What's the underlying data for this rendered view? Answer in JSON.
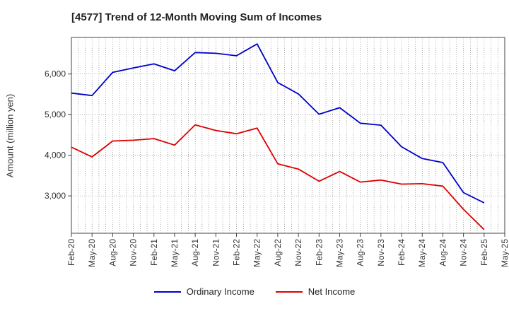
{
  "chart_data": {
    "type": "line",
    "title": "[4577]  Trend of 12-Month Moving Sum of Incomes",
    "xlabel": "",
    "ylabel": "Amount (million yen)",
    "categories": [
      "Feb-20",
      "May-20",
      "Aug-20",
      "Nov-20",
      "Feb-21",
      "May-21",
      "Aug-21",
      "Nov-21",
      "Feb-22",
      "May-22",
      "Aug-22",
      "Nov-22",
      "Feb-23",
      "May-23",
      "Aug-23",
      "Nov-23",
      "Feb-24",
      "May-24",
      "Aug-24",
      "Nov-24",
      "Feb-25",
      "May-25"
    ],
    "yticks": [
      3000,
      4000,
      5000,
      6000
    ],
    "ytick_labels": [
      "3,000",
      "4,000",
      "5,000",
      "6,000"
    ],
    "ylim": [
      2080,
      6900
    ],
    "grid": true,
    "legend_position": "bottom",
    "series": [
      {
        "name": "Ordinary Income",
        "color": "#0000cc",
        "values": [
          5530,
          5470,
          6040,
          6150,
          6250,
          6080,
          6530,
          6510,
          6450,
          6740,
          5790,
          5510,
          5010,
          5170,
          4790,
          4740,
          4210,
          3920,
          3820,
          3080,
          2830,
          null
        ]
      },
      {
        "name": "Net Income",
        "color": "#dd0000",
        "values": [
          4200,
          3960,
          4350,
          4370,
          4410,
          4250,
          4750,
          4610,
          4530,
          4670,
          3790,
          3660,
          3360,
          3600,
          3340,
          3390,
          3290,
          3300,
          3240,
          2670,
          2170,
          null
        ]
      }
    ]
  }
}
